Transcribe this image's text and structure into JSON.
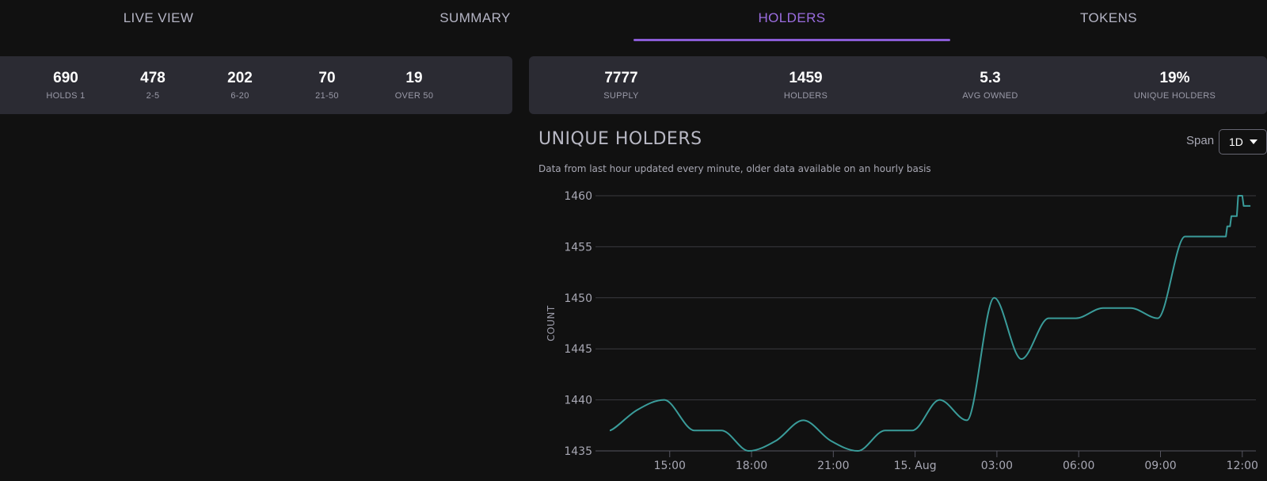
{
  "tabs": [
    {
      "label": "LIVE VIEW",
      "active": false
    },
    {
      "label": "SUMMARY",
      "active": false
    },
    {
      "label": "HOLDERS",
      "active": true
    },
    {
      "label": "TOKENS",
      "active": false
    }
  ],
  "distribution": [
    {
      "value": "690",
      "label": "HOLDS 1"
    },
    {
      "value": "478",
      "label": "2-5"
    },
    {
      "value": "202",
      "label": "6-20"
    },
    {
      "value": "70",
      "label": "21-50"
    },
    {
      "value": "19",
      "label": "OVER 50"
    }
  ],
  "summary": [
    {
      "value": "7777",
      "label": "SUPPLY"
    },
    {
      "value": "1459",
      "label": "HOLDERS"
    },
    {
      "value": "5.3",
      "label": "AVG OWNED"
    },
    {
      "value": "19%",
      "label": "UNIQUE HOLDERS"
    }
  ],
  "chart_header": {
    "title": "UNIQUE HOLDERS",
    "subtitle": "Data from last hour updated every minute, older data available on an hourly basis",
    "span_label": "Span",
    "span_value": "1D"
  },
  "colors": {
    "accent": "#8a5cd6",
    "line": "#3a9c9a",
    "card": "#2b2b33",
    "background": "#111111"
  },
  "chart_data": {
    "type": "line",
    "title": "UNIQUE HOLDERS",
    "xlabel": "",
    "ylabel": "COUNT",
    "ylim": [
      1435,
      1460
    ],
    "yticks": [
      1435,
      1440,
      1445,
      1450,
      1455,
      1460
    ],
    "x_ticks": [
      {
        "at": 15,
        "label": "15:00"
      },
      {
        "at": 18,
        "label": "18:00"
      },
      {
        "at": 21,
        "label": "21:00"
      },
      {
        "at": 24,
        "label": "15. Aug"
      },
      {
        "at": 27,
        "label": "03:00"
      },
      {
        "at": 30,
        "label": "06:00"
      },
      {
        "at": 33,
        "label": "09:00"
      },
      {
        "at": 36,
        "label": "12:00"
      }
    ],
    "grid": true,
    "series": [
      {
        "smooth": [
          [
            12.8,
            1437
          ],
          [
            13.8,
            1439
          ],
          [
            14.8,
            1440
          ],
          [
            15.9,
            1437
          ],
          [
            16.9,
            1437
          ],
          [
            17.9,
            1435
          ],
          [
            18.9,
            1436
          ],
          [
            19.9,
            1438
          ],
          [
            20.9,
            1436
          ],
          [
            21.9,
            1435
          ],
          [
            22.9,
            1437
          ],
          [
            23.9,
            1437
          ],
          [
            24.9,
            1440
          ],
          [
            25.9,
            1438
          ],
          [
            26.9,
            1450
          ],
          [
            27.9,
            1444
          ],
          [
            28.9,
            1448
          ],
          [
            29.9,
            1448
          ],
          [
            30.9,
            1449
          ],
          [
            31.9,
            1449
          ],
          [
            32.9,
            1448
          ],
          [
            33.9,
            1456
          ],
          [
            34.9,
            1456
          ]
        ],
        "step": [
          [
            34.9,
            1456
          ],
          [
            35.4,
            1456
          ],
          [
            35.45,
            1457
          ],
          [
            35.55,
            1457
          ],
          [
            35.6,
            1458
          ],
          [
            35.8,
            1458
          ],
          [
            35.85,
            1460
          ],
          [
            36.0,
            1460
          ],
          [
            36.05,
            1459
          ],
          [
            36.3,
            1459
          ]
        ]
      }
    ]
  }
}
